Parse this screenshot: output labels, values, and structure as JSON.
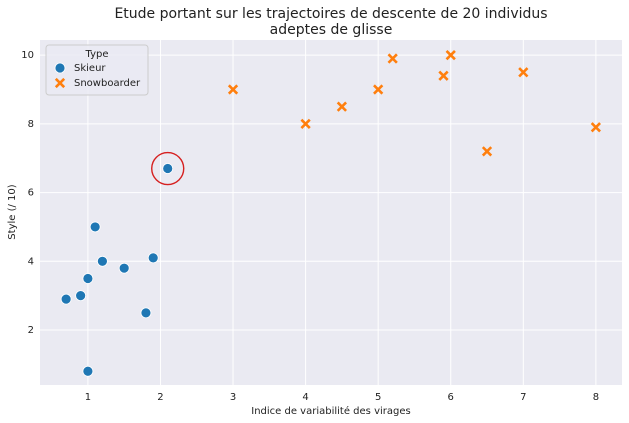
{
  "chart_data": {
    "type": "scatter",
    "title": [
      "Etude portant sur les trajectoires de descente de 20 individus",
      "adeptes de glisse"
    ],
    "x_label": "Indice de variabilité des virages",
    "y_label": "Style (/ 10)",
    "legend_title": "Type",
    "legend": "upper left",
    "grid": true,
    "xlim": [
      0.34,
      8.36
    ],
    "ylim": [
      0.4,
      10.44
    ],
    "xticks": [
      1,
      2,
      3,
      4,
      5,
      6,
      7,
      8
    ],
    "yticks": [
      2,
      4,
      6,
      8,
      10
    ],
    "series": [
      {
        "name": "Skieur",
        "color": "#1f77b4",
        "marker": "o",
        "x": [
          0.7,
          0.9,
          1.0,
          1.1,
          1.2,
          1.5,
          1.8,
          1.9,
          1.0,
          2.1
        ],
        "values": [
          2.9,
          3.0,
          3.5,
          5.0,
          4.0,
          3.8,
          2.5,
          4.1,
          0.8,
          6.7
        ]
      },
      {
        "name": "Snowboarder",
        "color": "#ff7f0e",
        "marker": "x",
        "x": [
          3,
          4,
          4.5,
          5,
          5.2,
          5.9,
          6,
          6.5,
          7,
          8
        ],
        "values": [
          9.0,
          8.0,
          8.5,
          9.0,
          9.9,
          9.4,
          10.0,
          7.2,
          9.5,
          7.9
        ]
      }
    ]
  }
}
